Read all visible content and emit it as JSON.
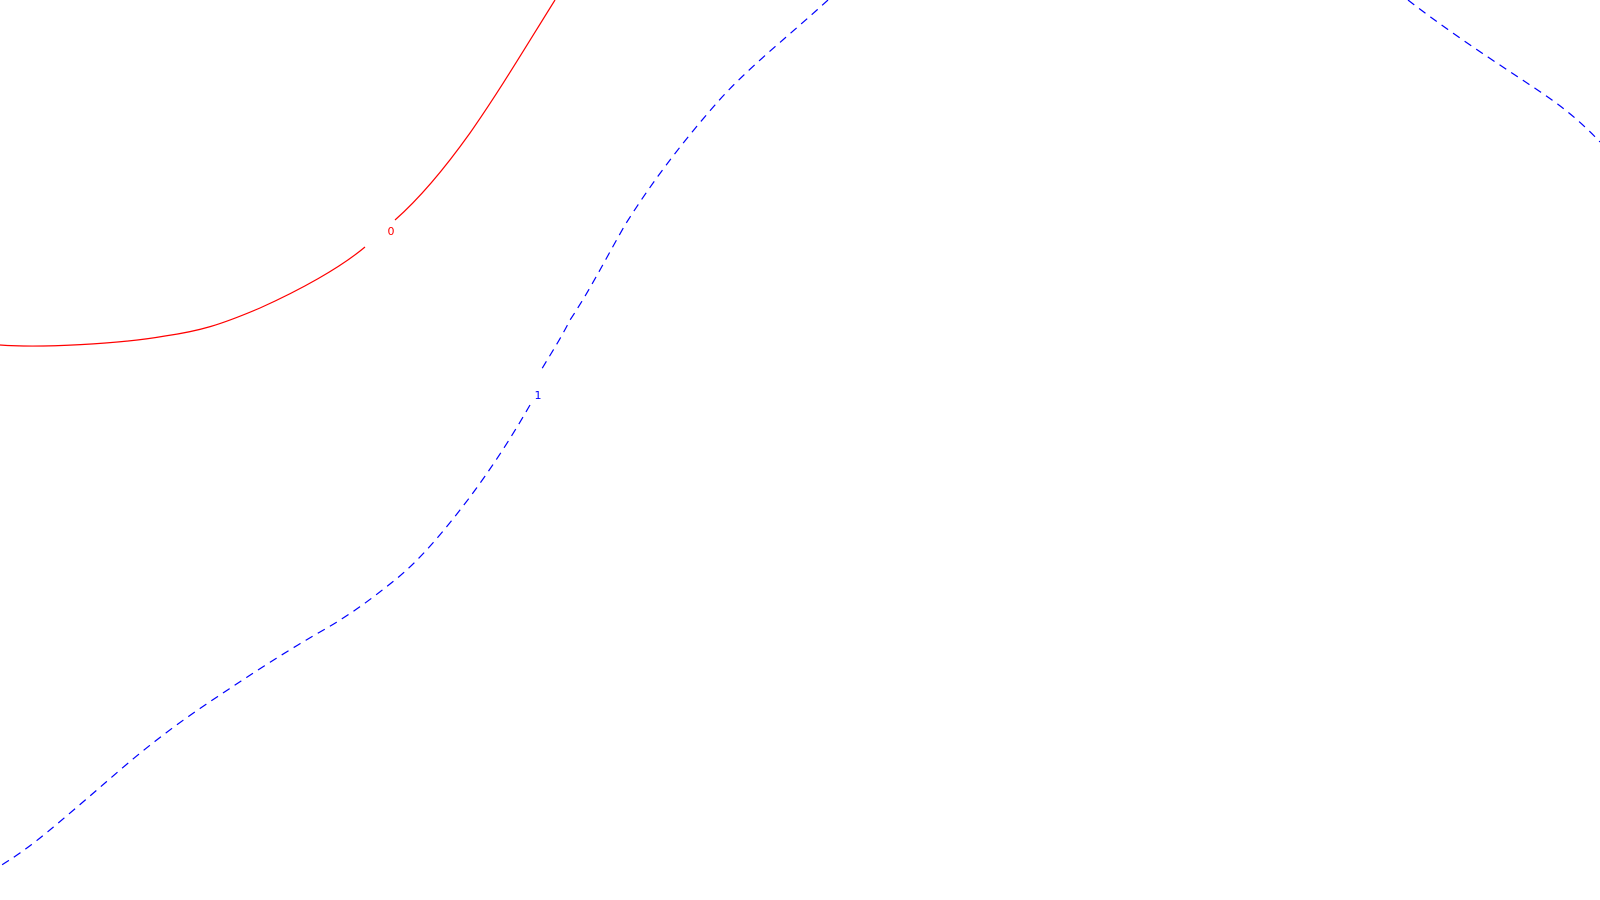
{
  "contours": [
    {
      "label": "0",
      "color": "#ff0000",
      "line_style": "solid"
    },
    {
      "label": "1",
      "color": "#0000ff",
      "line_style": "dashed"
    }
  ]
}
